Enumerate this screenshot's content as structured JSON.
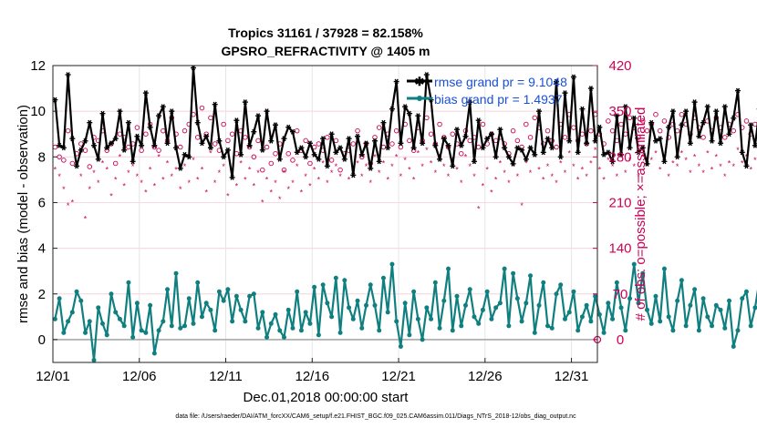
{
  "chart_data": {
    "type": "line",
    "title_line1": "Tropics 31161 / 37928 = 82.158%",
    "title_line2": "GPSRO_REFRACTIVITY @ 1405 m",
    "xlabel": "Dec.01,2018 00:00:00 start",
    "ylabel_left": "rmse and bias (model - observation)",
    "ylabel_right": "# of obs: o=possible; ×=assimilated",
    "footer": "data file: /Users/raeder/DAI/ATM_forcXX/CAM6_setup/f.e21.FHIST_BGC.f09_025.CAM6assim.011/Diags_NTrS_2018-12/obs_diag_output.nc",
    "x_range": [
      0,
      31.5
    ],
    "ylim_left": [
      -1,
      12
    ],
    "ylim_right": [
      -35,
      420
    ],
    "x_tick_values": [
      0,
      5,
      10,
      15,
      20,
      25,
      30
    ],
    "x_tick_labels": [
      "12/01",
      "12/06",
      "12/11",
      "12/16",
      "12/21",
      "12/26",
      "12/31"
    ],
    "y_left_ticks": [
      "0",
      "2",
      "4",
      "6",
      "8",
      "10",
      "12"
    ],
    "y_right_ticks": [
      "0",
      "70",
      "140",
      "210",
      "280",
      "350",
      "420"
    ],
    "legend": [
      {
        "label": "rmse grand pr = 9.1048",
        "color": "#000000"
      },
      {
        "label": "bias grand pr = 1.4937",
        "color": "#008080"
      }
    ],
    "colors": {
      "rmse": "#000000",
      "bias": "#0f7f7f",
      "obs": "#cc0055",
      "zero_line": "#aaaaaa",
      "legend_text": "#1a4fd6"
    },
    "time_step_days": 0.25,
    "rmse": [
      10.5,
      8.5,
      8.4,
      11.6,
      8.8,
      7.6,
      8.3,
      8.7,
      9.5,
      8.5,
      7.9,
      9.9,
      8.4,
      8.6,
      8.8,
      10.0,
      8.3,
      9.5,
      7.8,
      8.9,
      8.5,
      10.8,
      9.3,
      8.5,
      9.8,
      10.2,
      8.6,
      10.0,
      8.4,
      7.5,
      8.1,
      8.0,
      11.9,
      9.5,
      8.6,
      8.9,
      8.4,
      10.3,
      8.7,
      8.0,
      8.3,
      7.1,
      9.6,
      8.1,
      10.4,
      8.5,
      9.1,
      9.8,
      8.3,
      10.0,
      8.7,
      9.4,
      7.9,
      8.8,
      9.3,
      9.1,
      8.2,
      8.4,
      8.0,
      8.6,
      8.1,
      7.9,
      8.8,
      7.6,
      9.0,
      8.2,
      8.4,
      7.9,
      8.8,
      7.2,
      8.9,
      8.1,
      8.6,
      7.5,
      8.7,
      7.8,
      9.5,
      8.4,
      10.1,
      11.3,
      8.6,
      10.2,
      9.9,
      8.4,
      9.8,
      8.6,
      11.6,
      10.5,
      8.5,
      7.9,
      8.8,
      8.5,
      7.6,
      9.2,
      8.5,
      8.9,
      10.4,
      7.8,
      9.6,
      8.4,
      8.8,
      9.0,
      8.0,
      9.2,
      8.4,
      8.0,
      7.7,
      8.4,
      8.3,
      7.9,
      8.4,
      8.1,
      10.0,
      8.2,
      8.8,
      8.4,
      11.3,
      8.0,
      10.8,
      8.7,
      11.5,
      8.2,
      10.1,
      8.6,
      11.0,
      8.7,
      9.3,
      8.1,
      8.2,
      7.8,
      9.8,
      8.1,
      10.2,
      8.4,
      9.7,
      8.2,
      8.4,
      7.7,
      9.5,
      8.7,
      8.8,
      7.8,
      9.3,
      10.0,
      8.0,
      9.4,
      10.0,
      8.6,
      10.4,
      8.9,
      9.5,
      10.2,
      8.7,
      10.0,
      8.6,
      10.2,
      9.0,
      9.7,
      10.9,
      8.2,
      7.6,
      9.4,
      8.5,
      10.1,
      8.2,
      9.3,
      8.4,
      7.8,
      9.5,
      8.6,
      10.0,
      8.4,
      9.9,
      8.2,
      8.5,
      9.7,
      8.2,
      9.3,
      8.4,
      10.1,
      8.5,
      9.9,
      8.3,
      9.5,
      8.2,
      9.7,
      8.5,
      9.0,
      10.5,
      8.5,
      10.1,
      8.3,
      10.8,
      8.6,
      9.4,
      8.1,
      10.3,
      8.4,
      9.6,
      8.2,
      10.0,
      8.3,
      9.4,
      8.0,
      9.8,
      8.6,
      9.0,
      8.3,
      7.8,
      10.0,
      8.4,
      9.5,
      8.1,
      10.9,
      7.2,
      8.2,
      7.6,
      10.4,
      7.9,
      10.3,
      8.2,
      7.7
    ],
    "bias": [
      0.9,
      1.8,
      0.3,
      0.8,
      1.2,
      2.1,
      1.7,
      0.3,
      0.8,
      -0.9,
      1.4,
      0.7,
      0.2,
      2.0,
      1.2,
      0.9,
      0.6,
      2.5,
      0.1,
      1.6,
      0.4,
      0.3,
      1.5,
      -0.6,
      0.4,
      0.8,
      2.2,
      0.6,
      2.9,
      0.5,
      0.6,
      1.8,
      0.7,
      2.5,
      1.0,
      1.6,
      1.3,
      0.4,
      2.1,
      1.7,
      2.2,
      0.8,
      1.9,
      1.3,
      0.8,
      1.9,
      2.0,
      0.5,
      1.2,
      0.1,
      0.7,
      1.1,
      0.4,
      0.1,
      1.3,
      0.5,
      2.1,
      0.4,
      1.2,
      0.7,
      2.3,
      0.2,
      2.4,
      1.6,
      1.0,
      2.7,
      0.3,
      2.6,
      1.4,
      0.9,
      1.7,
      0.5,
      1.5,
      2.4,
      1.5,
      0.4,
      2.7,
      1.2,
      3.3,
      0.8,
      -0.3,
      1.6,
      0.2,
      2.1,
      0.9,
      0.0,
      1.4,
      0.9,
      2.5,
      0.5,
      1.7,
      3.1,
      0.4,
      1.9,
      0.6,
      1.5,
      2.2,
      1.0,
      0.7,
      1.3,
      2.1,
      0.9,
      1.4,
      1.6,
      3.1,
      0.6,
      2.9,
      1.8,
      0.8,
      1.6,
      2.8,
      0.3,
      1.5,
      2.5,
      0.6,
      0.5,
      2.0,
      2.4,
      0.9,
      1.2,
      2.1,
      0.4,
      1.0,
      1.5,
      0.8,
      1.9,
      1.1,
      0.3,
      1.6,
      0.9,
      2.5,
      1.4,
      0.4,
      1.8,
      3.3,
      1.6,
      2.9,
      1.3,
      0.7,
      1.9,
      0.8,
      3.1,
      1.0,
      0.4,
      1.7,
      2.6,
      0.6,
      1.5,
      2.2,
      0.4,
      1.8,
      1.0,
      0.6,
      1.5,
      1.3,
      0.5,
      1.7,
      -0.3,
      0.4,
      1.8,
      2.1,
      0.6,
      1.4,
      2.6,
      1.0,
      1.5,
      0.7,
      2.1,
      0.6,
      0.2,
      1.5,
      0.3,
      1.9,
      2.8,
      0.8,
      1.5,
      0.3,
      2.1,
      0.4,
      1.8,
      0.9,
      2.6,
      0.6,
      2.4,
      1.3,
      0.2,
      2.3,
      0.5,
      1.3,
      2.8,
      -0.3,
      1.5,
      0.7,
      2.0,
      1.4,
      0.7,
      2.3,
      1.5,
      0.9,
      1.8,
      0.6,
      1.9,
      1.0,
      2.7,
      1.2,
      0.4,
      3.1,
      1.6,
      2.2,
      1.1,
      1.9,
      3.9,
      2.7,
      1.6,
      2.4,
      3.6,
      2.1,
      1.7,
      1.7,
      1.7
    ],
    "obs_possible": [
      295,
      280,
      275,
      320,
      270,
      285,
      300,
      290,
      265,
      310,
      305,
      320,
      290,
      300,
      270,
      315,
      310,
      295,
      300,
      325,
      290,
      315,
      330,
      295,
      290,
      320,
      305,
      340,
      315,
      295,
      320,
      330,
      345,
      310,
      355,
      315,
      340,
      300,
      290,
      330,
      305,
      315,
      285,
      320,
      310,
      295,
      280,
      305,
      260,
      295,
      270,
      285,
      300,
      260,
      285,
      275,
      320,
      290,
      305,
      270,
      295,
      300,
      290,
      310,
      275,
      305,
      260,
      285,
      290,
      300,
      320,
      280,
      300,
      270,
      310,
      325,
      295,
      315,
      300,
      320,
      295,
      330,
      305,
      290,
      325,
      305,
      340,
      315,
      300,
      330,
      310,
      295,
      315,
      300,
      285,
      320,
      305,
      310,
      295,
      330,
      300,
      315,
      305,
      310,
      300,
      285,
      320,
      305,
      295,
      330,
      310,
      340,
      325,
      300,
      320,
      305,
      295,
      330,
      310,
      345,
      325,
      305,
      315,
      300,
      320,
      345,
      315,
      300,
      335,
      320,
      305,
      330,
      315,
      340,
      325,
      310,
      335,
      320,
      330,
      345,
      320,
      335,
      310,
      330,
      320,
      345,
      330,
      315,
      340,
      325,
      310,
      335,
      320,
      340,
      325,
      310,
      330,
      320,
      345,
      325,
      335,
      315,
      330,
      320,
      310,
      325,
      335,
      320,
      310,
      340,
      300,
      330,
      315,
      325,
      295,
      320,
      335,
      310,
      325,
      300,
      315,
      330,
      310,
      340,
      320,
      335,
      325,
      345,
      330,
      355,
      320,
      340,
      310,
      335,
      325,
      345,
      330,
      315,
      340,
      325,
      305,
      345,
      315,
      330,
      320,
      300,
      340,
      310,
      325,
      330,
      315,
      335,
      310,
      320,
      340,
      300,
      325,
      305,
      330,
      310,
      295,
      230,
      220,
      340,
      315,
      335,
      295,
      360,
      310
    ],
    "obs_assimilated": [
      260,
      250,
      230,
      205,
      210,
      265,
      250,
      185,
      230,
      255,
      240,
      270,
      260,
      220,
      245,
      280,
      235,
      255,
      265,
      250,
      240,
      225,
      260,
      235,
      280,
      245,
      270,
      250,
      260,
      230,
      265,
      240,
      275,
      245,
      260,
      225,
      285,
      240,
      255,
      265,
      220,
      250,
      235,
      270,
      245,
      260,
      235,
      255,
      210,
      245,
      225,
      240,
      215,
      255,
      230,
      240,
      265,
      225,
      250,
      235,
      260,
      245,
      270,
      240,
      255,
      265,
      250,
      275,
      245,
      260,
      270,
      250,
      265,
      240,
      280,
      255,
      270,
      245,
      265,
      280,
      250,
      275,
      260,
      245,
      285,
      265,
      290,
      270,
      255,
      280,
      265,
      250,
      275,
      260,
      240,
      280,
      265,
      250,
      200,
      235,
      260,
      225,
      245,
      270,
      255,
      240,
      265,
      250,
      205,
      270,
      255,
      285,
      260,
      245,
      265,
      250,
      240,
      270,
      255,
      285,
      265,
      245,
      260,
      250,
      270,
      290,
      260,
      245,
      275,
      265,
      250,
      280,
      255,
      275,
      265,
      250,
      280,
      265,
      275,
      285,
      260,
      275,
      250,
      270,
      265,
      285,
      275,
      255,
      280,
      265,
      255,
      285,
      260,
      280,
      265,
      250,
      270,
      265,
      290,
      270,
      280,
      260,
      275,
      265,
      255,
      265,
      280,
      270,
      255,
      285,
      245,
      275,
      255,
      270,
      240,
      265,
      280,
      255,
      270,
      245,
      260,
      275,
      250,
      285,
      265,
      280,
      270,
      290,
      275,
      295,
      265,
      285,
      255,
      280,
      270,
      290,
      275,
      260,
      285,
      265,
      250,
      290,
      260,
      275,
      265,
      245,
      285,
      255,
      270,
      275,
      260,
      280,
      255,
      265,
      285,
      250,
      270,
      250,
      275,
      255,
      240,
      215,
      200,
      280,
      260,
      280,
      245,
      290,
      255
    ]
  }
}
